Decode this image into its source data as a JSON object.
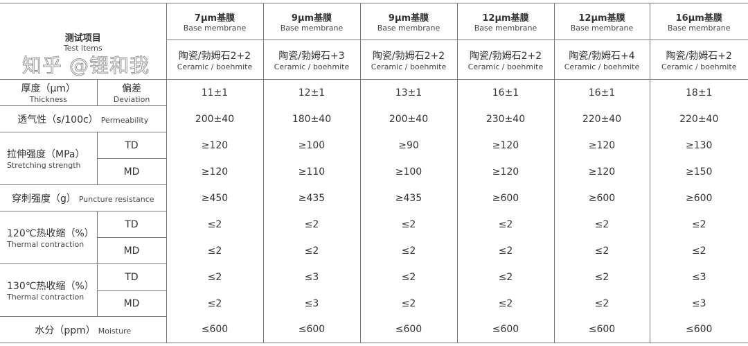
{
  "header": {
    "test_items_cn": "测试项目",
    "test_items_en": "Test items",
    "columns": [
      {
        "base_cn": "7μm基膜",
        "base_en": "Base membrane",
        "coat_cn": "陶瓷/勃姆石2+2",
        "coat_en": "Ceramic / boehmite"
      },
      {
        "base_cn": "9μm基膜",
        "base_en": "Base membrane",
        "coat_cn": "陶瓷/勃姆石+3",
        "coat_en": "Ceramic / boehmite"
      },
      {
        "base_cn": "9μm基膜",
        "base_en": "Base membrane",
        "coat_cn": "陶瓷/勃姆石2+2",
        "coat_en": "Ceramic / boehmite"
      },
      {
        "base_cn": "12μm基膜",
        "base_en": "Base membrane",
        "coat_cn": "陶瓷/勃姆石2+2",
        "coat_en": "Ceramic / boehmite"
      },
      {
        "base_cn": "12μm基膜",
        "base_en": "Base membrane",
        "coat_cn": "陶瓷/勃姆石+4",
        "coat_en": "Ceramic / boehmite"
      },
      {
        "base_cn": "16μm基膜",
        "base_en": "Base membrane",
        "coat_cn": "陶瓷/勃姆石+2",
        "coat_en": "Ceramic / boehmite"
      }
    ]
  },
  "rows": {
    "thickness": {
      "cn": "厚度（μm）",
      "en": "Thickness",
      "sub_cn": "偏差",
      "sub_en": "Deviation",
      "values": [
        "11±1",
        "12±1",
        "13±1",
        "16±1",
        "16±1",
        "18±1"
      ]
    },
    "permeability": {
      "cn": "透气性（s/100c）",
      "en": "Permeability",
      "values": [
        "200±40",
        "180±40",
        "200±40",
        "230±40",
        "220±40",
        "220±40"
      ]
    },
    "stretching": {
      "cn": "拉伸强度（MPa）",
      "en": "Stretching strength",
      "td": {
        "label": "TD",
        "values": [
          "≥120",
          "≥100",
          "≥90",
          "≥120",
          "≥120",
          "≥130"
        ]
      },
      "md": {
        "label": "MD",
        "values": [
          "≥120",
          "≥110",
          "≥100",
          "≥120",
          "≥120",
          "≥150"
        ]
      }
    },
    "puncture": {
      "cn": "穿刺强度（g）",
      "en": "Puncture resistance",
      "values": [
        "≥450",
        "≥435",
        "≥435",
        "≥600",
        "≥600",
        "≥600"
      ]
    },
    "thermal120": {
      "cn": "120℃热收缩（%）",
      "en": "Thermal contraction",
      "td": {
        "label": "TD",
        "values": [
          "≤2",
          "≤2",
          "≤2",
          "≤2",
          "≤2",
          "≤2"
        ]
      },
      "md": {
        "label": "MD",
        "values": [
          "≤2",
          "≤2",
          "≤2",
          "≤2",
          "≤2",
          "≤2"
        ]
      }
    },
    "thermal130": {
      "cn": "130℃热收缩（%）",
      "en": "Thermal contraction",
      "td": {
        "label": "TD",
        "values": [
          "≤2",
          "≤3",
          "≤2",
          "≤2",
          "≤2",
          "≤3"
        ]
      },
      "md": {
        "label": "MD",
        "values": [
          "≤2",
          "≤3",
          "≤2",
          "≤2",
          "≤2",
          "≤3"
        ]
      }
    },
    "moisture": {
      "cn": "水分（ppm）",
      "en": "Moisture",
      "values": [
        "≤600",
        "≤600",
        "≤600",
        "≤600",
        "≤600",
        "≤600"
      ]
    }
  },
  "watermark": "知乎 @锂和我"
}
